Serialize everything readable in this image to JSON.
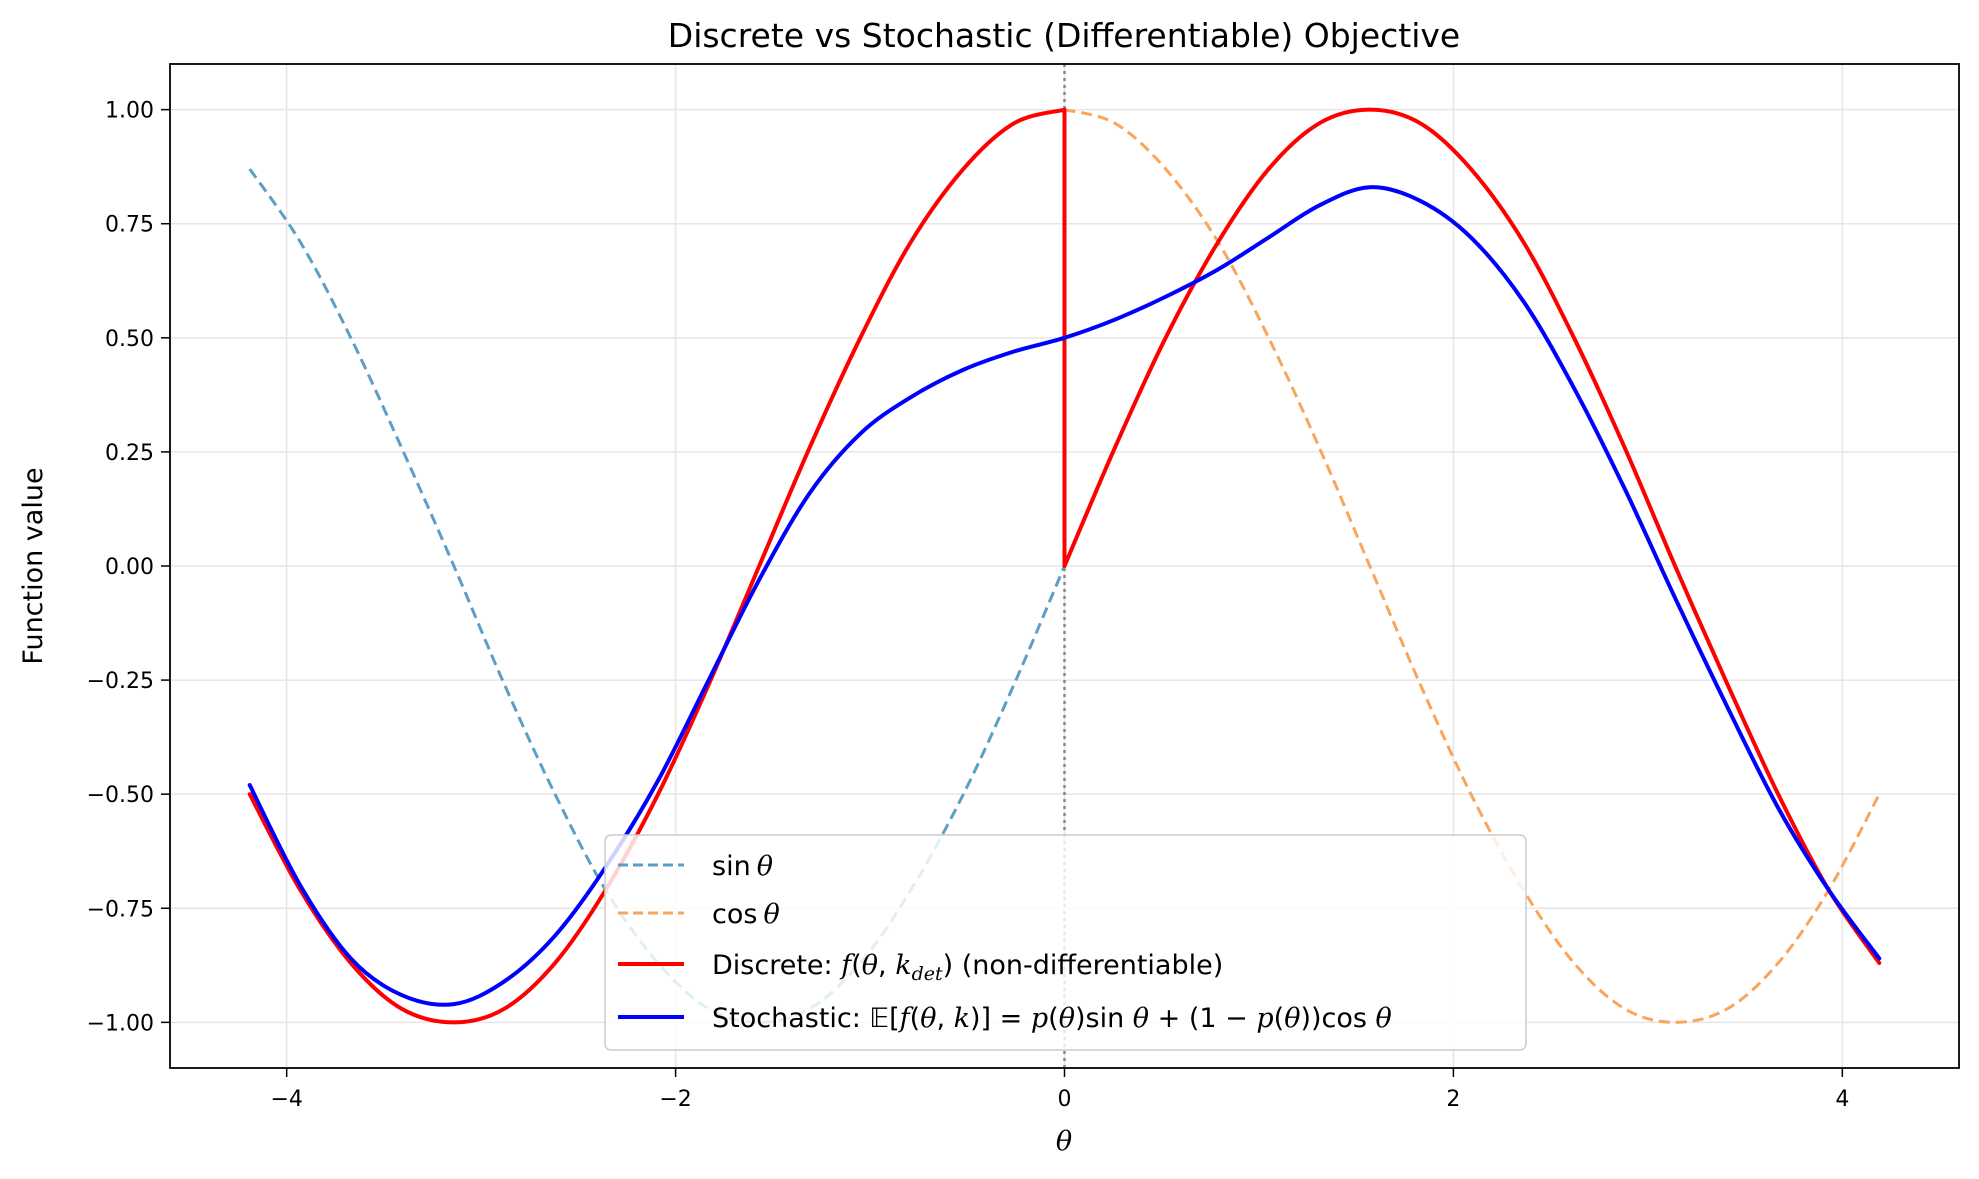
{
  "chart_data": {
    "type": "line",
    "title": "Discrete vs Stochastic (Differentiable) Objective",
    "xlabel": "θ",
    "ylabel": "Function value",
    "xlim": [
      -4.6,
      4.6
    ],
    "ylim": [
      -1.1,
      1.1
    ],
    "x_ticks": [
      -4,
      -2,
      0,
      2,
      4
    ],
    "x_tick_labels": [
      "−4",
      "−2",
      "0",
      "2",
      "4"
    ],
    "y_ticks": [
      1.0,
      0.75,
      0.5,
      0.25,
      0.0,
      -0.25,
      -0.5,
      -0.75,
      -1.0
    ],
    "y_tick_labels": [
      "1.00",
      "0.75",
      "0.50",
      "0.25",
      "0.00",
      "−0.25",
      "−0.50",
      "−0.75",
      "−1.00"
    ],
    "grid": true,
    "legend_position": "lower-center",
    "vline_x": 0,
    "series": [
      {
        "name": "sin θ",
        "color": "#5b9fc8",
        "style": "dashed",
        "points": [
          [
            -4.19,
            0.87
          ],
          [
            -3.93,
            0.71
          ],
          [
            -3.67,
            0.5
          ],
          [
            -3.41,
            0.26
          ],
          [
            -3.14,
            0.0
          ],
          [
            -2.88,
            -0.26
          ],
          [
            -2.62,
            -0.5
          ],
          [
            -2.36,
            -0.71
          ],
          [
            -2.09,
            -0.87
          ],
          [
            -1.83,
            -0.97
          ],
          [
            -1.57,
            -1.0
          ],
          [
            -1.31,
            -0.97
          ],
          [
            -1.05,
            -0.87
          ],
          [
            -0.79,
            -0.71
          ],
          [
            -0.52,
            -0.5
          ],
          [
            -0.26,
            -0.26
          ],
          [
            0.0,
            0.0
          ]
        ]
      },
      {
        "name": "cos θ",
        "color": "#f9a55b",
        "style": "dashed",
        "points": [
          [
            0.0,
            1.0
          ],
          [
            0.26,
            0.97
          ],
          [
            0.52,
            0.87
          ],
          [
            0.79,
            0.71
          ],
          [
            1.05,
            0.5
          ],
          [
            1.31,
            0.26
          ],
          [
            1.57,
            0.0
          ],
          [
            1.83,
            -0.26
          ],
          [
            2.09,
            -0.5
          ],
          [
            2.36,
            -0.71
          ],
          [
            2.62,
            -0.87
          ],
          [
            2.88,
            -0.97
          ],
          [
            3.14,
            -1.0
          ],
          [
            3.41,
            -0.97
          ],
          [
            3.67,
            -0.87
          ],
          [
            3.93,
            -0.71
          ],
          [
            4.19,
            -0.5
          ]
        ]
      },
      {
        "name": "Discrete: f(θ, k_det) (non-differentiable)",
        "color": "#ff0000",
        "style": "solid",
        "points": [
          [
            -4.19,
            -0.5
          ],
          [
            -3.93,
            -0.71
          ],
          [
            -3.67,
            -0.87
          ],
          [
            -3.41,
            -0.97
          ],
          [
            -3.14,
            -1.0
          ],
          [
            -2.88,
            -0.97
          ],
          [
            -2.62,
            -0.87
          ],
          [
            -2.36,
            -0.71
          ],
          [
            -2.09,
            -0.5
          ],
          [
            -1.83,
            -0.26
          ],
          [
            -1.57,
            0.0
          ],
          [
            -1.31,
            0.26
          ],
          [
            -1.05,
            0.5
          ],
          [
            -0.79,
            0.71
          ],
          [
            -0.52,
            0.87
          ],
          [
            -0.26,
            0.97
          ],
          [
            0.0,
            1.0
          ],
          [
            0.0,
            0.0
          ],
          [
            0.26,
            0.26
          ],
          [
            0.52,
            0.5
          ],
          [
            0.79,
            0.71
          ],
          [
            1.05,
            0.87
          ],
          [
            1.31,
            0.97
          ],
          [
            1.57,
            1.0
          ],
          [
            1.83,
            0.97
          ],
          [
            2.09,
            0.87
          ],
          [
            2.36,
            0.71
          ],
          [
            2.62,
            0.5
          ],
          [
            2.88,
            0.26
          ],
          [
            3.14,
            0.0
          ],
          [
            3.41,
            -0.26
          ],
          [
            3.67,
            -0.5
          ],
          [
            3.93,
            -0.71
          ],
          [
            4.19,
            -0.87
          ]
        ]
      },
      {
        "name": "Stochastic: 𝔼[f(θ, k)] = p(θ) sin θ + (1 − p(θ)) cos θ",
        "color": "#0000ff",
        "style": "solid",
        "points": [
          [
            -4.19,
            -0.48
          ],
          [
            -3.93,
            -0.7
          ],
          [
            -3.67,
            -0.86
          ],
          [
            -3.41,
            -0.94
          ],
          [
            -3.14,
            -0.96
          ],
          [
            -2.88,
            -0.91
          ],
          [
            -2.62,
            -0.81
          ],
          [
            -2.36,
            -0.66
          ],
          [
            -2.09,
            -0.47
          ],
          [
            -1.83,
            -0.25
          ],
          [
            -1.57,
            -0.03
          ],
          [
            -1.31,
            0.16
          ],
          [
            -1.05,
            0.29
          ],
          [
            -0.79,
            0.37
          ],
          [
            -0.52,
            0.43
          ],
          [
            -0.26,
            0.47
          ],
          [
            0.0,
            0.5
          ],
          [
            0.26,
            0.54
          ],
          [
            0.52,
            0.59
          ],
          [
            0.79,
            0.65
          ],
          [
            1.05,
            0.72
          ],
          [
            1.31,
            0.79
          ],
          [
            1.57,
            0.83
          ],
          [
            1.83,
            0.8
          ],
          [
            2.09,
            0.72
          ],
          [
            2.36,
            0.58
          ],
          [
            2.62,
            0.39
          ],
          [
            2.88,
            0.17
          ],
          [
            3.14,
            -0.07
          ],
          [
            3.41,
            -0.31
          ],
          [
            3.67,
            -0.53
          ],
          [
            3.93,
            -0.71
          ],
          [
            4.19,
            -0.86
          ]
        ]
      }
    ]
  }
}
